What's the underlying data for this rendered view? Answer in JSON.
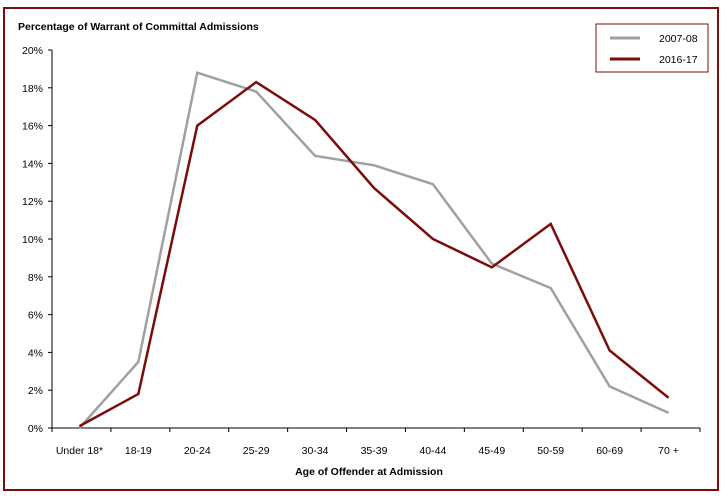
{
  "chart_data": {
    "type": "line",
    "title": "",
    "ylabel": "Percentage of Warrant of Committal Admissions",
    "xlabel": "Age of Offender at Admission",
    "categories": [
      "Under 18*",
      "18-19",
      "20-24",
      "25-29",
      "30-34",
      "35-39",
      "40-44",
      "45-49",
      "50-59",
      "60-69",
      "70 +"
    ],
    "ylim": [
      0,
      20
    ],
    "yticks": [
      0,
      2,
      4,
      6,
      8,
      10,
      12,
      14,
      16,
      18,
      20
    ],
    "ytick_labels": [
      "0%",
      "2%",
      "4%",
      "6%",
      "8%",
      "10%",
      "12%",
      "14%",
      "16%",
      "18%",
      "20%"
    ],
    "grid": false,
    "legend_position": "top-right",
    "series": [
      {
        "name": "2007-08",
        "color": "#a0a0a0",
        "values": [
          0.0,
          3.5,
          18.8,
          17.8,
          14.4,
          13.9,
          12.9,
          8.7,
          7.4,
          2.2,
          0.8
        ]
      },
      {
        "name": "2016-17",
        "color": "#7b0c0c",
        "values": [
          0.1,
          1.8,
          16.0,
          18.3,
          16.3,
          12.7,
          10.0,
          8.5,
          10.8,
          4.1,
          1.6
        ]
      }
    ]
  },
  "border_color": "#7b0c0c"
}
